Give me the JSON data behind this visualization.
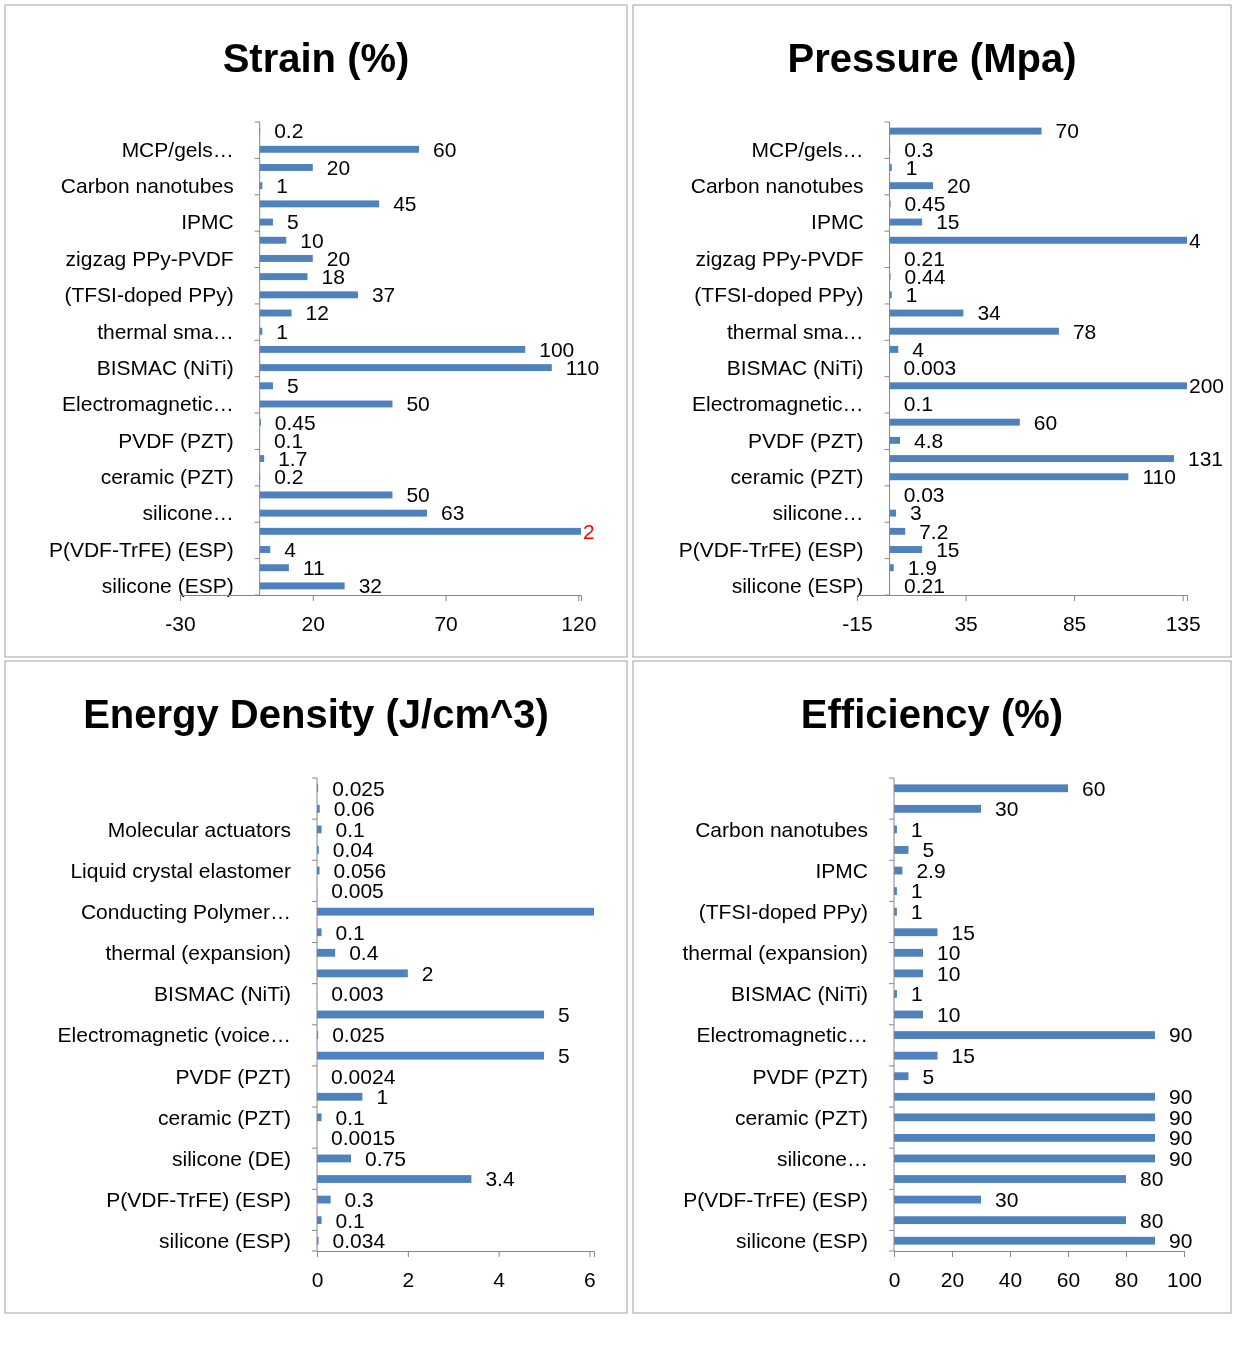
{
  "chart_data": [
    {
      "type": "bar",
      "orientation": "horizontal",
      "title": "Strain (%)",
      "color": "#4f81bd",
      "xlim": [
        -30,
        121
      ],
      "xticks": [
        -30,
        20,
        70,
        120
      ],
      "categories": [
        null,
        "MCP/gels…",
        null,
        "Carbon nanotubes",
        null,
        "IPMC",
        null,
        "zigzag PPy-PVDF",
        null,
        "(TFSI-doped PPy)",
        null,
        "thermal sma…",
        null,
        "BISMAC (NiTi)",
        null,
        "Electromagnetic…",
        null,
        "PVDF (PZT)",
        null,
        "ceramic (PZT)",
        null,
        "silicone…",
        null,
        "P(VDF-TrFE) (ESP)",
        null,
        "silicone (ESP)"
      ],
      "values": [
        0.2,
        60,
        20,
        1,
        45,
        5,
        10,
        20,
        18,
        37,
        12,
        1,
        100,
        110,
        5,
        50,
        0.45,
        0.1,
        1.7,
        0.2,
        50,
        63,
        121,
        4,
        11,
        32
      ],
      "value_labels": [
        "0.2",
        "60",
        "20",
        "1",
        "45",
        "5",
        "10",
        "20",
        "18",
        "37",
        "12",
        "1",
        "100",
        "110",
        "5",
        "50",
        "0.45",
        "0.1",
        "1.7",
        "0.2",
        "50",
        "63",
        null,
        "4",
        "11",
        "32"
      ],
      "annotations": [
        "2"
      ]
    },
    {
      "type": "bar",
      "orientation": "horizontal",
      "title": "Pressure (Mpa)",
      "color": "#4f81bd",
      "xlim": [
        -15,
        137
      ],
      "xticks": [
        -15,
        35,
        85,
        135
      ],
      "categories": [
        null,
        "MCP/gels…",
        null,
        "Carbon nanotubes",
        null,
        "IPMC",
        null,
        "zigzag PPy-PVDF",
        null,
        "(TFSI-doped PPy)",
        null,
        "thermal sma…",
        null,
        "BISMAC (NiTi)",
        null,
        "Electromagnetic…",
        null,
        "PVDF (PZT)",
        null,
        "ceramic (PZT)",
        null,
        "silicone…",
        null,
        "P(VDF-TrFE) (ESP)",
        null,
        "silicone (ESP)"
      ],
      "values": [
        70,
        0.3,
        1,
        20,
        0.45,
        15,
        137,
        0.21,
        0.44,
        1,
        34,
        78,
        4,
        0.003,
        137,
        0.1,
        60,
        4.8,
        131,
        110,
        0.03,
        3,
        7.2,
        15,
        1.9,
        0.21
      ],
      "annotations": [
        "4",
        "200"
      ],
      "value_labels": [
        "70",
        "0.3",
        "1",
        "20",
        "0.45",
        "15",
        null,
        "0.21",
        "0.44",
        "1",
        "34",
        "78",
        "4",
        "0.003",
        null,
        "0.1",
        "60",
        "4.8",
        "131",
        "110",
        "0.03",
        "3",
        "7.2",
        "15",
        "1.9",
        "0.21"
      ]
    },
    {
      "type": "bar",
      "orientation": "horizontal",
      "title": "Energy Density (J/cm^3)",
      "color": "#4f81bd",
      "xlim": [
        0,
        6.1
      ],
      "xticks": [
        0,
        2,
        4,
        6
      ],
      "categories": [
        null,
        null,
        "Molecular actuators",
        null,
        "Liquid crystal elastomer",
        null,
        "Conducting Polymer…",
        null,
        "thermal (expansion)",
        null,
        "BISMAC (NiTi)",
        null,
        "Electromagnetic (voice…",
        null,
        "PVDF (PZT)",
        null,
        "ceramic (PZT)",
        null,
        "silicone (DE)",
        null,
        "P(VDF-TrFE) (ESP)",
        null,
        "silicone (ESP)"
      ],
      "values": [
        0.025,
        0.06,
        0.1,
        0.04,
        0.056,
        0.005,
        6.1,
        0.1,
        0.4,
        2,
        0.003,
        5,
        0.025,
        5,
        0.0024,
        1,
        0.1,
        0.0015,
        0.75,
        3.4,
        0.3,
        0.1,
        0.034
      ],
      "value_labels": [
        "0.025",
        "0.06",
        "0.1",
        "0.04",
        "0.056",
        "0.005",
        null,
        "0.1",
        "0.4",
        "2",
        "0.003",
        "5",
        "0.025",
        "5",
        "0.0024",
        "1",
        "0.1",
        "0.0015",
        "0.75",
        "3.4",
        "0.3",
        "0.1",
        "0.034"
      ]
    },
    {
      "type": "bar",
      "orientation": "horizontal",
      "title": "Efficiency (%)",
      "color": "#4f81bd",
      "xlim": [
        0,
        100
      ],
      "xticks": [
        0,
        20,
        40,
        60,
        80,
        100
      ],
      "categories": [
        null,
        null,
        "Carbon nanotubes",
        null,
        "IPMC",
        null,
        "(TFSI-doped PPy)",
        null,
        "thermal (expansion)",
        null,
        "BISMAC (NiTi)",
        null,
        "Electromagnetic…",
        null,
        "PVDF (PZT)",
        null,
        "ceramic (PZT)",
        null,
        "silicone…",
        null,
        "P(VDF-TrFE) (ESP)",
        null,
        "silicone (ESP)"
      ],
      "values": [
        60,
        30,
        1,
        5,
        2.9,
        1,
        1,
        15,
        10,
        10,
        1,
        10,
        90,
        15,
        5,
        90,
        90,
        90,
        90,
        80,
        30,
        80,
        90
      ],
      "data_labels": true
    }
  ]
}
